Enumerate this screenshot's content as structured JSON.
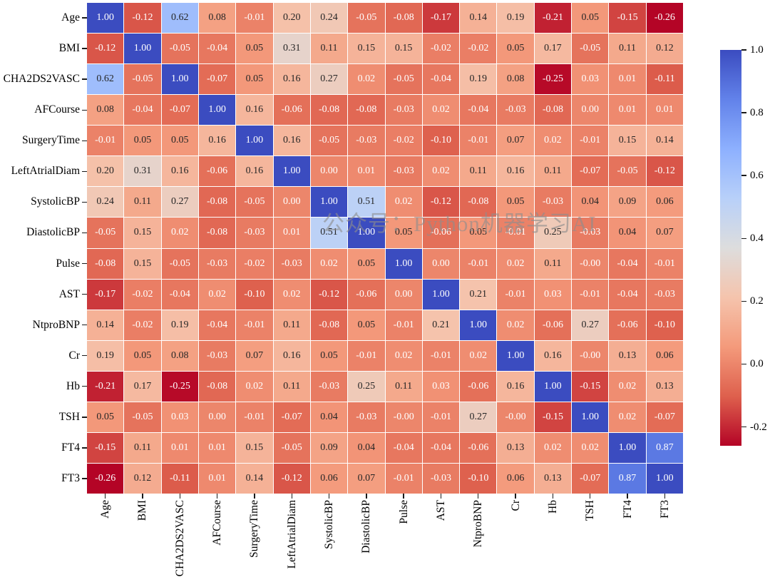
{
  "watermark": {
    "text": "公众号：Python机器学习AI",
    "color": "#8e8e8e"
  },
  "colors": {
    "background": "#ffffff",
    "gridline": "#ffffff",
    "axis_text": "#000000",
    "annotation_dark_text": "#262626",
    "annotation_light_text": "#ffffff",
    "colormap_name": "coolwarm reversed (blue = high, red = low)",
    "colormap_anchors": [
      {
        "t": 0.0,
        "rgb": [
          59,
          76,
          192
        ]
      },
      {
        "t": 0.125,
        "rgb": [
          98,
          130,
          234
        ]
      },
      {
        "t": 0.25,
        "rgb": [
          141,
          176,
          254
        ]
      },
      {
        "t": 0.375,
        "rgb": [
          184,
          208,
          249
        ]
      },
      {
        "t": 0.5,
        "rgb": [
          221,
          221,
          221
        ]
      },
      {
        "t": 0.625,
        "rgb": [
          245,
          196,
          173
        ]
      },
      {
        "t": 0.75,
        "rgb": [
          244,
          154,
          123
        ]
      },
      {
        "t": 0.875,
        "rgb": [
          222,
          96,
          77
        ]
      },
      {
        "t": 1.0,
        "rgb": [
          180,
          4,
          38
        ]
      }
    ]
  },
  "chart_data": {
    "type": "heatmap",
    "title": "",
    "xlabel": "",
    "ylabel": "",
    "legend_position": "right colorbar",
    "vmin": -0.26,
    "vmax": 1.0,
    "colorbar_ticks": [
      "1.0",
      "0.8",
      "0.6",
      "0.4",
      "0.2",
      "0.0",
      "-0.2"
    ],
    "colorbar_tick_values": [
      1.0,
      0.8,
      0.6,
      0.4,
      0.2,
      0.0,
      -0.2
    ],
    "variables": [
      "Age",
      "BMI",
      "CHA2DS2VASC",
      "AFCourse",
      "SurgeryTime",
      "LeftAtrialDiam",
      "SystolicBP",
      "DiastolicBP",
      "Pulse",
      "AST",
      "NtproBNP",
      "Cr",
      "Hb",
      "TSH",
      "FT4",
      "FT3"
    ],
    "matrix": [
      [
        "1.00",
        "-0.12",
        "0.62",
        "0.08",
        "-0.01",
        "0.20",
        "0.24",
        "-0.05",
        "-0.08",
        "-0.17",
        "0.14",
        "0.19",
        "-0.21",
        "0.05",
        "-0.15",
        "-0.26"
      ],
      [
        "-0.12",
        "1.00",
        "-0.05",
        "-0.04",
        "0.05",
        "0.31",
        "0.11",
        "0.15",
        "0.15",
        "-0.02",
        "-0.02",
        "0.05",
        "0.17",
        "-0.05",
        "0.11",
        "0.12"
      ],
      [
        "0.62",
        "-0.05",
        "1.00",
        "-0.07",
        "0.05",
        "0.16",
        "0.27",
        "0.02",
        "-0.05",
        "-0.04",
        "0.19",
        "0.08",
        "-0.25",
        "0.03",
        "0.01",
        "-0.11"
      ],
      [
        "0.08",
        "-0.04",
        "-0.07",
        "1.00",
        "0.16",
        "-0.06",
        "-0.08",
        "-0.08",
        "-0.03",
        "0.02",
        "-0.04",
        "-0.03",
        "-0.08",
        "0.00",
        "0.01",
        "0.01"
      ],
      [
        "-0.01",
        "0.05",
        "0.05",
        "0.16",
        "1.00",
        "0.16",
        "-0.05",
        "-0.03",
        "-0.02",
        "-0.10",
        "-0.01",
        "0.07",
        "0.02",
        "-0.01",
        "0.15",
        "0.14"
      ],
      [
        "0.20",
        "0.31",
        "0.16",
        "-0.06",
        "0.16",
        "1.00",
        "0.00",
        "0.01",
        "-0.03",
        "0.02",
        "0.11",
        "0.16",
        "0.11",
        "-0.07",
        "-0.05",
        "-0.12"
      ],
      [
        "0.24",
        "0.11",
        "0.27",
        "-0.08",
        "-0.05",
        "0.00",
        "1.00",
        "0.51",
        "0.02",
        "-0.12",
        "-0.08",
        "0.05",
        "-0.03",
        "0.04",
        "0.09",
        "0.06"
      ],
      [
        "-0.05",
        "0.15",
        "0.02",
        "-0.08",
        "-0.03",
        "0.01",
        "0.51",
        "1.00",
        "0.05",
        "-0.06",
        "0.05",
        "-0.01",
        "0.25",
        "-0.03",
        "0.04",
        "0.07"
      ],
      [
        "-0.08",
        "0.15",
        "-0.05",
        "-0.03",
        "-0.02",
        "-0.03",
        "0.02",
        "0.05",
        "1.00",
        "0.00",
        "-0.01",
        "0.02",
        "0.11",
        "-0.00",
        "-0.04",
        "-0.01"
      ],
      [
        "-0.17",
        "-0.02",
        "-0.04",
        "0.02",
        "-0.10",
        "0.02",
        "-0.12",
        "-0.06",
        "0.00",
        "1.00",
        "0.21",
        "-0.01",
        "0.03",
        "-0.01",
        "-0.04",
        "-0.03"
      ],
      [
        "0.14",
        "-0.02",
        "0.19",
        "-0.04",
        "-0.01",
        "0.11",
        "-0.08",
        "0.05",
        "-0.01",
        "0.21",
        "1.00",
        "0.02",
        "-0.06",
        "0.27",
        "-0.06",
        "-0.10"
      ],
      [
        "0.19",
        "0.05",
        "0.08",
        "-0.03",
        "0.07",
        "0.16",
        "0.05",
        "-0.01",
        "0.02",
        "-0.01",
        "0.02",
        "1.00",
        "0.16",
        "-0.00",
        "0.13",
        "0.06"
      ],
      [
        "-0.21",
        "0.17",
        "-0.25",
        "-0.08",
        "0.02",
        "0.11",
        "-0.03",
        "0.25",
        "0.11",
        "0.03",
        "-0.06",
        "0.16",
        "1.00",
        "-0.15",
        "0.02",
        "0.13"
      ],
      [
        "0.05",
        "-0.05",
        "0.03",
        "0.00",
        "-0.01",
        "-0.07",
        "0.04",
        "-0.03",
        "-0.00",
        "-0.01",
        "0.27",
        "-0.00",
        "-0.15",
        "1.00",
        "0.02",
        "-0.07"
      ],
      [
        "-0.15",
        "0.11",
        "0.01",
        "0.01",
        "0.15",
        "-0.05",
        "0.09",
        "0.04",
        "-0.04",
        "-0.04",
        "-0.06",
        "0.13",
        "0.02",
        "0.02",
        "1.00",
        "0.87"
      ],
      [
        "-0.26",
        "0.12",
        "-0.11",
        "0.01",
        "0.14",
        "-0.12",
        "0.06",
        "0.07",
        "-0.01",
        "-0.03",
        "-0.10",
        "0.06",
        "0.13",
        "-0.07",
        "0.87",
        "1.00"
      ]
    ]
  }
}
